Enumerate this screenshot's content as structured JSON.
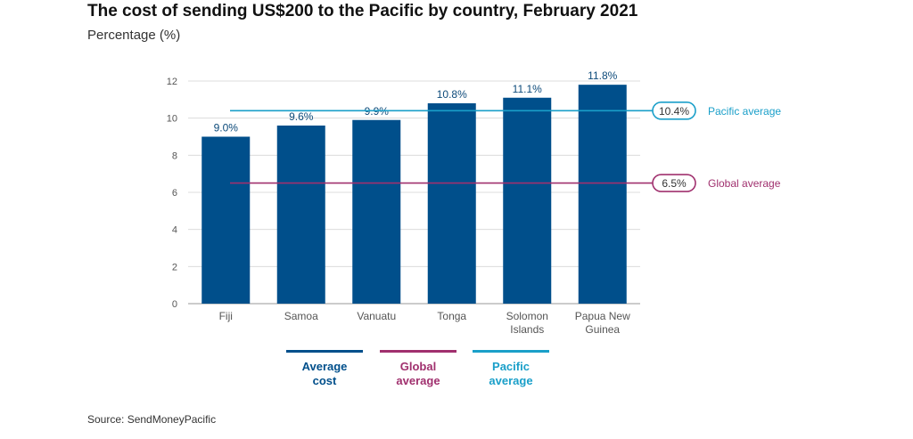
{
  "chart_data": {
    "type": "bar",
    "title": "The cost of sending US$200 to the Pacific by country, February 2021",
    "subtitle": "Percentage (%)",
    "categories": [
      [
        "Fiji"
      ],
      [
        "Samoa"
      ],
      [
        "Vanuatu"
      ],
      [
        "Tonga"
      ],
      [
        "Solomon",
        "Islands"
      ],
      [
        "Papua New",
        "Guinea"
      ]
    ],
    "series": [
      {
        "name": "Average cost",
        "values": [
          9.0,
          9.6,
          9.9,
          10.8,
          11.1,
          11.8
        ],
        "color": "#004f8b"
      }
    ],
    "data_labels": [
      "9.0%",
      "9.6%",
      "9.9%",
      "10.8%",
      "11.1%",
      "11.8%"
    ],
    "reference_lines": [
      {
        "name": "Global average",
        "value": 6.5,
        "label": "6.5%",
        "side_label": "Global average",
        "color": "#a0306e"
      },
      {
        "name": "Pacific average",
        "value": 10.4,
        "label": "10.4%",
        "side_label": "Pacific average",
        "color": "#1a9fc9"
      }
    ],
    "ylim": [
      0,
      12
    ],
    "yticks": [
      0,
      2,
      4,
      6,
      8,
      10,
      12
    ],
    "grid": true,
    "legend": [
      {
        "lines": [
          "Average",
          "cost"
        ],
        "color": "#004f8b"
      },
      {
        "lines": [
          "Global",
          "average"
        ],
        "color": "#a0306e"
      },
      {
        "lines": [
          "Pacific",
          "average"
        ],
        "color": "#1a9fc9"
      }
    ],
    "legend_position": "bottom"
  },
  "source": "Source: SendMoneyPacific"
}
